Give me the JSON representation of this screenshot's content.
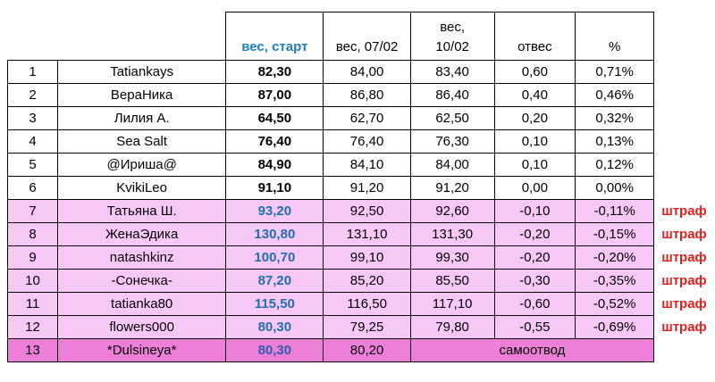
{
  "header": {
    "start": "вес, старт",
    "w0702": "вес, 07/02",
    "w1002_line1": "вес,",
    "w1002_line2": "10/02",
    "loss": "отвес",
    "percent": "%"
  },
  "rows": [
    {
      "n": "1",
      "name": "Tatiankays",
      "start": "82,30",
      "w0702": "84,00",
      "w1002": "83,40",
      "loss": "0,60",
      "pct": "0,71%",
      "mark": ""
    },
    {
      "n": "2",
      "name": "ВераНика",
      "start": "87,00",
      "w0702": "86,80",
      "w1002": "86,40",
      "loss": "0,40",
      "pct": "0,46%",
      "mark": ""
    },
    {
      "n": "3",
      "name": "Лилия А.",
      "start": "64,50",
      "w0702": "62,70",
      "w1002": "62,50",
      "loss": "0,20",
      "pct": "0,32%",
      "mark": ""
    },
    {
      "n": "4",
      "name": "Sea Salt",
      "start": "76,40",
      "w0702": "76,40",
      "w1002": "76,30",
      "loss": "0,10",
      "pct": "0,13%",
      "mark": ""
    },
    {
      "n": "5",
      "name": "@Ириша@",
      "start": "84,90",
      "w0702": "84,10",
      "w1002": "84,00",
      "loss": "0,10",
      "pct": "0,12%",
      "mark": ""
    },
    {
      "n": "6",
      "name": "KvikiLeo",
      "start": "91,10",
      "w0702": "91,20",
      "w1002": "91,20",
      "loss": "0,00",
      "pct": "0,00%",
      "mark": ""
    },
    {
      "n": "7",
      "name": "Татьяна Ш.",
      "start": "93,20",
      "w0702": "92,50",
      "w1002": "92,60",
      "loss": "-0,10",
      "pct": "-0,11%",
      "mark": "штраф"
    },
    {
      "n": "8",
      "name": "ЖенаЭдика",
      "start": "130,80",
      "w0702": "131,10",
      "w1002": "131,30",
      "loss": "-0,20",
      "pct": "-0,15%",
      "mark": "штраф"
    },
    {
      "n": "9",
      "name": "natashkinz",
      "start": "100,70",
      "w0702": "99,10",
      "w1002": "99,30",
      "loss": "-0,20",
      "pct": "-0,20%",
      "mark": "штраф"
    },
    {
      "n": "10",
      "name": "-Сонечка-",
      "start": "87,20",
      "w0702": "85,20",
      "w1002": "85,50",
      "loss": "-0,30",
      "pct": "-0,35%",
      "mark": "штраф"
    },
    {
      "n": "11",
      "name": "tatianka80",
      "start": "115,50",
      "w0702": "116,50",
      "w1002": "117,10",
      "loss": "-0,60",
      "pct": "-0,52%",
      "mark": "штраф"
    },
    {
      "n": "12",
      "name": "flowers000",
      "start": "80,30",
      "w0702": "79,25",
      "w1002": "79,80",
      "loss": "-0,55",
      "pct": "-0,69%",
      "mark": "штраф"
    }
  ],
  "withdrawn": {
    "n": "13",
    "name": "*Dulsineya*",
    "start": "80,30",
    "w0702": "80,20",
    "status": "самоотвод"
  },
  "colors": {
    "start_text": "#1f6fae",
    "penalty_row": "#f7c8f5",
    "withdrawn_row": "#ee7fd8",
    "penalty_mark": "#e0201c"
  }
}
